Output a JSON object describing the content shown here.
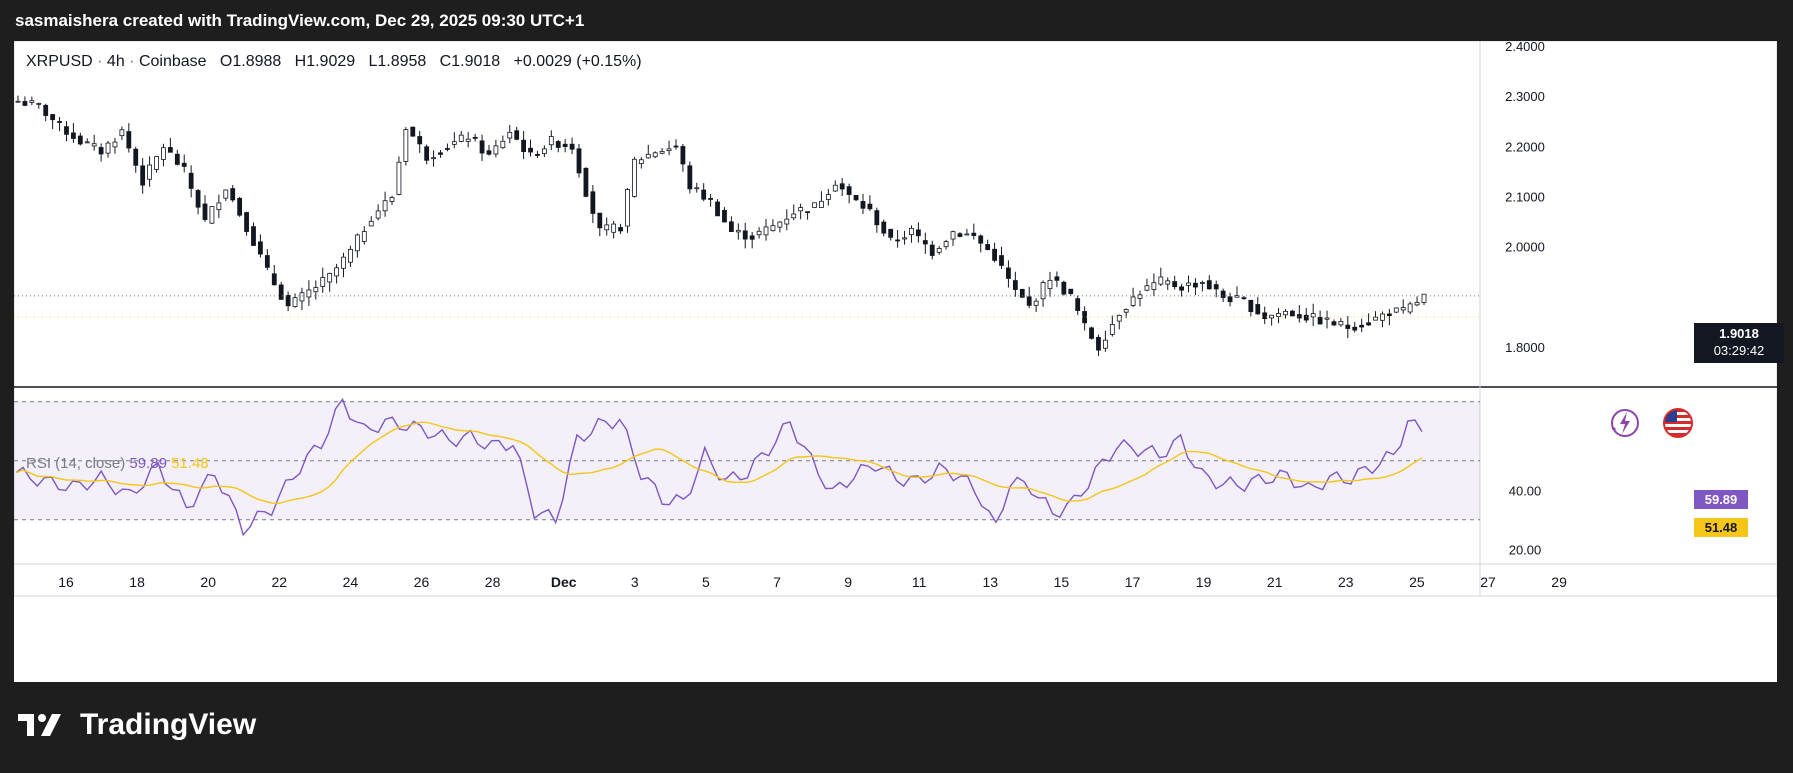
{
  "header": {
    "caption": "sasmaishera created with TradingView.com, Dec 29, 2025 09:30 UTC+1"
  },
  "legend": {
    "symbol": "XRPUSD",
    "interval": "4h",
    "exchange": "Coinbase",
    "open_label": "O",
    "open": "1.8988",
    "high_label": "H",
    "high": "1.9029",
    "low_label": "L",
    "low": "1.8958",
    "close_label": "C",
    "close": "1.9018",
    "change": "+0.0029 (+0.15%)"
  },
  "price_tag": {
    "price": "1.9018",
    "countdown": "03:29:42"
  },
  "rsi": {
    "label": "RSI (14, close)",
    "value": "59.89",
    "ma_value": "51.48",
    "line_color": "#7e57c2",
    "ma_color": "#f5c518"
  },
  "brand": {
    "name": "TradingView"
  },
  "icons": {
    "flash": "flash-icon",
    "flag": "us-flag-icon"
  },
  "chart_data": {
    "type": "candlestick",
    "symbol": "XRPUSD",
    "interval": "4h",
    "y_ticks": [
      "2.4000",
      "2.3000",
      "2.2000",
      "2.1000",
      "2.0000",
      "1.8000"
    ],
    "ylim": [
      1.72,
      2.41
    ],
    "x_ticks": [
      "16",
      "18",
      "20",
      "22",
      "24",
      "26",
      "28",
      "Dec",
      "3",
      "5",
      "7",
      "9",
      "11",
      "13",
      "15",
      "17",
      "19",
      "21",
      "23",
      "25",
      "27",
      "29"
    ],
    "rsi_ticks": [
      "40.00",
      "20.00"
    ],
    "rsi_bands": [
      30,
      70
    ],
    "rsi_lim": [
      15,
      75
    ],
    "close_anchors": [
      [
        0,
        2.29
      ],
      [
        3,
        2.28
      ],
      [
        6,
        2.24
      ],
      [
        9,
        2.21
      ],
      [
        12,
        2.19
      ],
      [
        15,
        2.23
      ],
      [
        18,
        2.13
      ],
      [
        21,
        2.2
      ],
      [
        24,
        2.15
      ],
      [
        27,
        2.05
      ],
      [
        30,
        2.12
      ],
      [
        33,
        2.04
      ],
      [
        36,
        1.95
      ],
      [
        39,
        1.88
      ],
      [
        42,
        1.91
      ],
      [
        45,
        1.94
      ],
      [
        48,
        1.99
      ],
      [
        51,
        2.06
      ],
      [
        54,
        2.1
      ],
      [
        56,
        2.24
      ],
      [
        59,
        2.18
      ],
      [
        62,
        2.2
      ],
      [
        65,
        2.22
      ],
      [
        68,
        2.18
      ],
      [
        71,
        2.23
      ],
      [
        74,
        2.18
      ],
      [
        77,
        2.21
      ],
      [
        80,
        2.2
      ],
      [
        82,
        2.11
      ],
      [
        84,
        2.03
      ],
      [
        87,
        2.04
      ],
      [
        89,
        2.17
      ],
      [
        92,
        2.19
      ],
      [
        95,
        2.2
      ],
      [
        97,
        2.12
      ],
      [
        100,
        2.09
      ],
      [
        103,
        2.03
      ],
      [
        106,
        2.02
      ],
      [
        109,
        2.04
      ],
      [
        112,
        2.07
      ],
      [
        115,
        2.08
      ],
      [
        118,
        2.13
      ],
      [
        120,
        2.1
      ],
      [
        123,
        2.07
      ],
      [
        126,
        2.01
      ],
      [
        129,
        2.03
      ],
      [
        132,
        1.99
      ],
      [
        135,
        2.03
      ],
      [
        138,
        2.02
      ],
      [
        141,
        1.98
      ],
      [
        144,
        1.91
      ],
      [
        146,
        1.88
      ],
      [
        149,
        1.94
      ],
      [
        152,
        1.9
      ],
      [
        154,
        1.84
      ],
      [
        156,
        1.8
      ],
      [
        159,
        1.87
      ],
      [
        162,
        1.91
      ],
      [
        165,
        1.93
      ],
      [
        168,
        1.92
      ],
      [
        171,
        1.93
      ],
      [
        174,
        1.9
      ],
      [
        177,
        1.89
      ],
      [
        180,
        1.86
      ],
      [
        183,
        1.87
      ],
      [
        186,
        1.86
      ],
      [
        189,
        1.85
      ],
      [
        192,
        1.84
      ],
      [
        195,
        1.85
      ],
      [
        198,
        1.87
      ],
      [
        200,
        1.87
      ],
      [
        203,
        1.9
      ]
    ],
    "rsi_anchors": [
      [
        0,
        46
      ],
      [
        4,
        43
      ],
      [
        8,
        41
      ],
      [
        12,
        44
      ],
      [
        16,
        38
      ],
      [
        20,
        48
      ],
      [
        24,
        34
      ],
      [
        28,
        46
      ],
      [
        32,
        27
      ],
      [
        36,
        34
      ],
      [
        40,
        48
      ],
      [
        43,
        56
      ],
      [
        46,
        70
      ],
      [
        49,
        60
      ],
      [
        52,
        63
      ],
      [
        55,
        62
      ],
      [
        58,
        60
      ],
      [
        61,
        57
      ],
      [
        64,
        58
      ],
      [
        67,
        55
      ],
      [
        70,
        56
      ],
      [
        73,
        33
      ],
      [
        76,
        30
      ],
      [
        79,
        57
      ],
      [
        82,
        62
      ],
      [
        85,
        64
      ],
      [
        88,
        46
      ],
      [
        91,
        37
      ],
      [
        94,
        36
      ],
      [
        97,
        52
      ],
      [
        100,
        43
      ],
      [
        103,
        46
      ],
      [
        106,
        54
      ],
      [
        109,
        63
      ],
      [
        112,
        50
      ],
      [
        115,
        39
      ],
      [
        118,
        45
      ],
      [
        121,
        49
      ],
      [
        124,
        44
      ],
      [
        127,
        43
      ],
      [
        130,
        47
      ],
      [
        133,
        45
      ],
      [
        136,
        37
      ],
      [
        138,
        27
      ],
      [
        140,
        43
      ],
      [
        143,
        41
      ],
      [
        146,
        32
      ],
      [
        149,
        36
      ],
      [
        152,
        46
      ],
      [
        155,
        55
      ],
      [
        158,
        54
      ],
      [
        161,
        52
      ],
      [
        164,
        57
      ],
      [
        167,
        45
      ],
      [
        170,
        42
      ],
      [
        173,
        42
      ],
      [
        176,
        44
      ],
      [
        179,
        45
      ],
      [
        182,
        40
      ],
      [
        185,
        44
      ],
      [
        188,
        44
      ],
      [
        191,
        48
      ],
      [
        194,
        52
      ],
      [
        196,
        63
      ],
      [
        198,
        59.89
      ]
    ]
  }
}
